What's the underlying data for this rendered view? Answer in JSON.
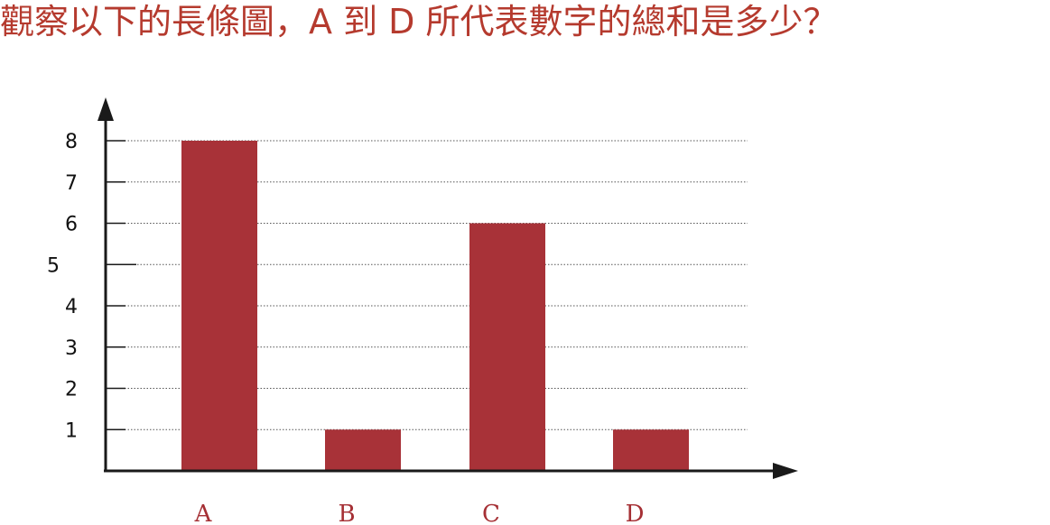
{
  "question": {
    "text": "觀察以下的長條圖，A 到 D 所代表數字的總和是多少？"
  },
  "colors": {
    "bar": "#a83238",
    "question_text": "#b53a2e",
    "axis": "#1a1a1a",
    "grid": "#555555"
  },
  "chart_data": {
    "type": "bar",
    "categories": [
      "A",
      "B",
      "C",
      "D"
    ],
    "values": [
      8,
      1,
      6,
      1
    ],
    "ylim": [
      0,
      8
    ],
    "yticks": [
      {
        "value": 1,
        "label": "1"
      },
      {
        "value": 2,
        "label": "2"
      },
      {
        "value": 3,
        "label": "3"
      },
      {
        "value": 4,
        "label": "4"
      },
      {
        "value": 5,
        "label": "5"
      },
      {
        "value": 6,
        "label": "6"
      },
      {
        "value": 7,
        "label": "7"
      },
      {
        "value": 8,
        "label": "8"
      }
    ],
    "grid": true,
    "grid_style": "dotted",
    "title": "",
    "xlabel": "",
    "ylabel": ""
  }
}
